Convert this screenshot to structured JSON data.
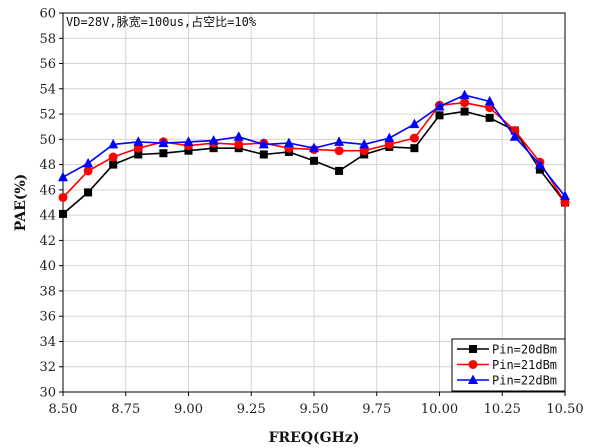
{
  "chart_data": {
    "type": "line",
    "annotation": "VD=28V,脉宽=100us,占空比=10%",
    "xlabel": "FREQ(GHz)",
    "ylabel": "PAE(%)",
    "xlim": [
      8.5,
      10.5
    ],
    "ylim": [
      30,
      60
    ],
    "x_ticks": [
      "8.50",
      "8.75",
      "9.00",
      "9.25",
      "9.50",
      "9.75",
      "10.00",
      "10.25",
      "10.50"
    ],
    "y_ticks": [
      "30",
      "32",
      "34",
      "36",
      "38",
      "40",
      "42",
      "44",
      "46",
      "48",
      "50",
      "52",
      "54",
      "56",
      "58",
      "60"
    ],
    "grid": true,
    "legend_position": "bottom-right",
    "x": [
      8.5,
      8.6,
      8.7,
      8.8,
      8.9,
      9.0,
      9.1,
      9.2,
      9.3,
      9.4,
      9.5,
      9.6,
      9.7,
      9.8,
      9.9,
      10.0,
      10.1,
      10.2,
      10.3,
      10.4,
      10.5
    ],
    "series": [
      {
        "name": "Pin=20dBm",
        "color": "#000000",
        "marker": "square",
        "values": [
          44.1,
          45.8,
          48.0,
          48.8,
          48.9,
          49.1,
          49.3,
          49.3,
          48.8,
          49.0,
          48.3,
          47.5,
          48.8,
          49.4,
          49.3,
          51.9,
          52.2,
          51.7,
          50.7,
          47.6,
          45.0
        ]
      },
      {
        "name": "Pin=21dBm",
        "color": "#ff0000",
        "marker": "circle",
        "values": [
          45.4,
          47.5,
          48.6,
          49.3,
          49.8,
          49.5,
          49.7,
          49.6,
          49.7,
          49.3,
          49.2,
          49.1,
          49.1,
          49.6,
          50.1,
          52.7,
          52.9,
          52.5,
          50.7,
          48.2,
          45.0
        ]
      },
      {
        "name": "Pin=22dBm",
        "color": "#0000ff",
        "marker": "triangle",
        "values": [
          47.0,
          48.1,
          49.6,
          49.8,
          49.7,
          49.8,
          49.9,
          50.2,
          49.6,
          49.7,
          49.3,
          49.8,
          49.6,
          50.1,
          51.2,
          52.6,
          53.5,
          53.0,
          50.2,
          48.0,
          45.5
        ]
      }
    ]
  }
}
